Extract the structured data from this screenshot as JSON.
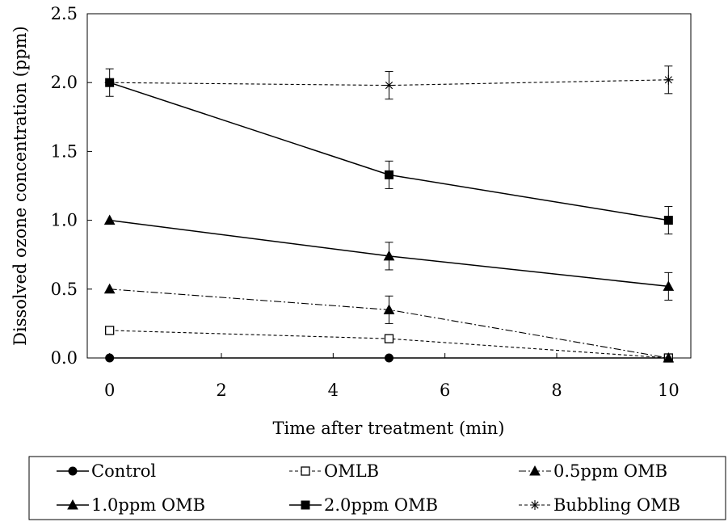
{
  "chart_data": {
    "type": "line",
    "xlabel": "Time after treatment (min)",
    "ylabel": "Dissolved ozone concentration (ppm)",
    "xlim": [
      -0.4,
      10.4
    ],
    "ylim": [
      0,
      2.5
    ],
    "x_ticks": [
      0,
      2,
      4,
      6,
      8,
      10
    ],
    "y_ticks": [
      0.0,
      0.5,
      1.0,
      1.5,
      2.0,
      2.5
    ],
    "x_tick_labels": [
      "0",
      "2",
      "4",
      "6",
      "8",
      "10"
    ],
    "y_tick_labels": [
      "0.0",
      "0.5",
      "1.0",
      "1.5",
      "2.0",
      "2.5"
    ],
    "grid": false,
    "legend_position": "bottom",
    "x": [
      0,
      5,
      10
    ],
    "series": [
      {
        "name": "Control",
        "marker": "filled-circle",
        "line": "solid",
        "values": [
          0.0,
          0.0,
          0.0
        ],
        "errors": [
          0,
          0,
          0
        ]
      },
      {
        "name": "OMLB",
        "marker": "open-square",
        "line": "dashed",
        "values": [
          0.2,
          0.14,
          0.0
        ],
        "errors": [
          0,
          0,
          0
        ]
      },
      {
        "name": "0.5ppm OMB",
        "marker": "filled-triangle",
        "line": "dash-dot",
        "values": [
          0.5,
          0.35,
          0.0
        ],
        "errors": [
          0,
          0.1,
          0
        ]
      },
      {
        "name": "1.0ppm OMB",
        "marker": "filled-triangle",
        "line": "solid",
        "values": [
          1.0,
          0.74,
          0.52
        ],
        "errors": [
          0,
          0.1,
          0.1
        ]
      },
      {
        "name": "2.0ppm OMB",
        "marker": "filled-square",
        "line": "solid",
        "values": [
          2.0,
          1.33,
          1.0
        ],
        "errors": [
          0.1,
          0.1,
          0.1
        ]
      },
      {
        "name": "Bubbling OMB",
        "marker": "asterisk",
        "line": "dashed",
        "values": [
          2.0,
          1.98,
          2.02
        ],
        "errors": [
          0,
          0.1,
          0.1
        ]
      }
    ]
  }
}
